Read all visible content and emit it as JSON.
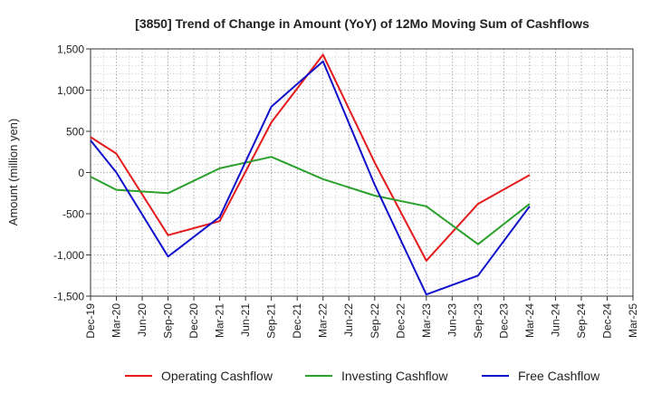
{
  "chart_data": {
    "type": "line",
    "title": "[3850]  Trend of Change in Amount (YoY) of 12Mo Moving Sum of Cashflows",
    "xlabel": "",
    "ylabel": "Amount (million yen)",
    "ylim": [
      -1500,
      1500
    ],
    "yticks": [
      1500,
      1000,
      500,
      0,
      -500,
      -1000,
      -1500
    ],
    "ytick_labels": [
      "1,500",
      "1,000",
      "500",
      "0",
      "-500",
      "-1,000",
      "-1,500"
    ],
    "grid": true,
    "legend_position": "bottom",
    "categories": [
      "Dec-19",
      "Mar-20",
      "Jun-20",
      "Sep-20",
      "Dec-20",
      "Mar-21",
      "Jun-21",
      "Sep-21",
      "Dec-21",
      "Mar-22",
      "Jun-22",
      "Sep-22",
      "Dec-22",
      "Mar-23",
      "Jun-23",
      "Sep-23",
      "Dec-23",
      "Mar-24",
      "Jun-24",
      "Sep-24",
      "Dec-24",
      "Mar-25"
    ],
    "series": [
      {
        "name": "Operating Cashflow",
        "color": "#e41a1c",
        "values": [
          430,
          230,
          null,
          -760,
          null,
          -590,
          null,
          610,
          null,
          1430,
          null,
          120,
          null,
          -1070,
          null,
          -380,
          null,
          -30,
          null,
          null,
          null,
          null
        ]
      },
      {
        "name": "Investing Cashflow",
        "color": "#2ca02c",
        "values": [
          -50,
          -210,
          null,
          -250,
          null,
          50,
          null,
          190,
          null,
          -80,
          null,
          -280,
          null,
          -410,
          null,
          -870,
          null,
          -380,
          null,
          null,
          null,
          null
        ]
      },
      {
        "name": "Free Cashflow",
        "color": "#1010cc",
        "values": [
          390,
          0,
          null,
          -1020,
          null,
          -540,
          null,
          800,
          null,
          1350,
          null,
          -150,
          null,
          -1480,
          null,
          -1250,
          null,
          -410,
          null,
          null,
          null,
          null
        ]
      }
    ]
  }
}
